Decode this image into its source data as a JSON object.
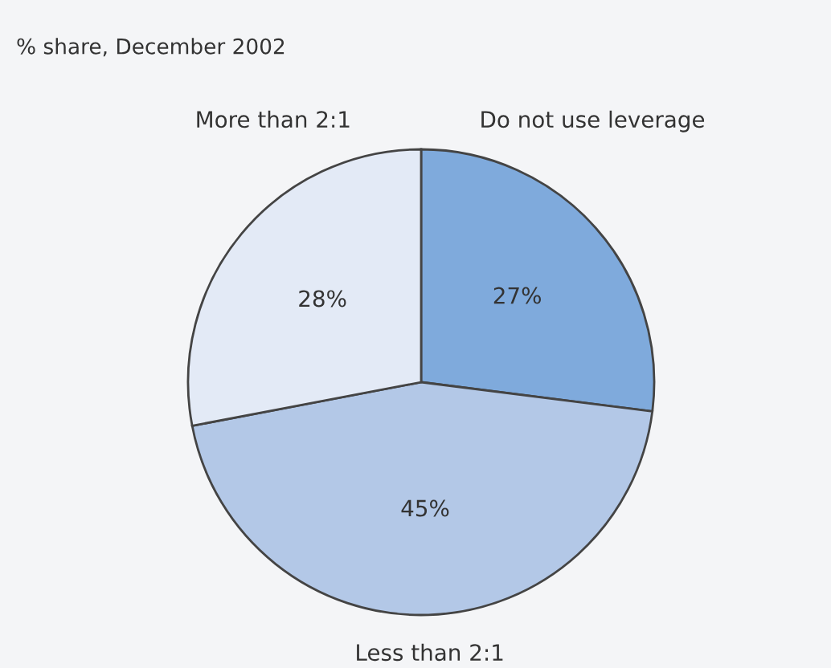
{
  "chart_data": {
    "type": "pie",
    "title": "% share, December 2002",
    "categories": [
      "Do not use leverage",
      "Less than 2:1",
      "More than 2:1"
    ],
    "values": [
      27,
      45,
      28
    ],
    "colors": [
      "#7faadc",
      "#b3c8e7",
      "#e3eaf6"
    ],
    "value_labels": [
      "27%",
      "45%",
      "28%"
    ]
  }
}
